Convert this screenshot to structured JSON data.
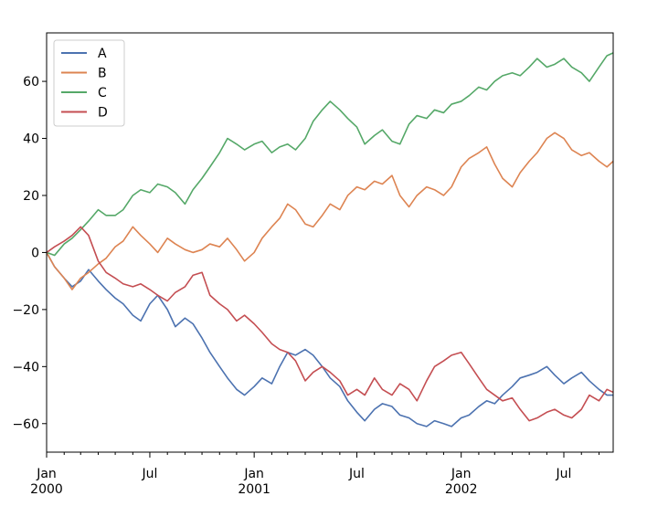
{
  "chart_data": {
    "type": "line",
    "title": "",
    "xlabel": "",
    "ylabel": "",
    "x_range": [
      "2000-01-01",
      "2002-09-26"
    ],
    "ylim": [
      -70,
      77
    ],
    "grid": false,
    "legend_position": "top-left",
    "y_ticks": [
      -60,
      -40,
      -20,
      0,
      20,
      40,
      60
    ],
    "x_major_ticks": [
      {
        "date": "2000-01-01",
        "label": [
          "Jan",
          "2000"
        ]
      },
      {
        "date": "2000-07-01",
        "label": [
          "Jul"
        ]
      },
      {
        "date": "2001-01-01",
        "label": [
          "Jan",
          "2001"
        ]
      },
      {
        "date": "2001-07-01",
        "label": [
          "Jul"
        ]
      },
      {
        "date": "2002-01-01",
        "label": [
          "Jan",
          "2002"
        ]
      },
      {
        "date": "2002-07-01",
        "label": [
          "Jul"
        ]
      }
    ],
    "series": [
      {
        "name": "A",
        "color": "#4c72b0",
        "points": [
          [
            "2000-01-01",
            0
          ],
          [
            "2000-01-15",
            -5
          ],
          [
            "2000-02-01",
            -9
          ],
          [
            "2000-02-15",
            -12
          ],
          [
            "2000-03-01",
            -10
          ],
          [
            "2000-03-15",
            -6
          ],
          [
            "2000-04-01",
            -10
          ],
          [
            "2000-04-15",
            -13
          ],
          [
            "2000-05-01",
            -16
          ],
          [
            "2000-05-15",
            -18
          ],
          [
            "2000-06-01",
            -22
          ],
          [
            "2000-06-15",
            -24
          ],
          [
            "2000-07-01",
            -18
          ],
          [
            "2000-07-15",
            -15
          ],
          [
            "2000-08-01",
            -20
          ],
          [
            "2000-08-15",
            -26
          ],
          [
            "2000-09-01",
            -23
          ],
          [
            "2000-09-15",
            -25
          ],
          [
            "2000-10-01",
            -30
          ],
          [
            "2000-10-15",
            -35
          ],
          [
            "2000-11-01",
            -40
          ],
          [
            "2000-11-15",
            -44
          ],
          [
            "2000-12-01",
            -48
          ],
          [
            "2000-12-15",
            -50
          ],
          [
            "2001-01-01",
            -47
          ],
          [
            "2001-01-15",
            -44
          ],
          [
            "2001-02-01",
            -46
          ],
          [
            "2001-02-15",
            -40
          ],
          [
            "2001-03-01",
            -35
          ],
          [
            "2001-03-15",
            -36
          ],
          [
            "2001-04-01",
            -34
          ],
          [
            "2001-04-15",
            -36
          ],
          [
            "2001-05-01",
            -40
          ],
          [
            "2001-05-15",
            -44
          ],
          [
            "2001-06-01",
            -47
          ],
          [
            "2001-06-15",
            -52
          ],
          [
            "2001-07-01",
            -56
          ],
          [
            "2001-07-15",
            -59
          ],
          [
            "2001-08-01",
            -55
          ],
          [
            "2001-08-15",
            -53
          ],
          [
            "2001-09-01",
            -54
          ],
          [
            "2001-09-15",
            -57
          ],
          [
            "2001-10-01",
            -58
          ],
          [
            "2001-10-15",
            -60
          ],
          [
            "2001-11-01",
            -61
          ],
          [
            "2001-11-15",
            -59
          ],
          [
            "2001-12-01",
            -60
          ],
          [
            "2001-12-15",
            -61
          ],
          [
            "2002-01-01",
            -58
          ],
          [
            "2002-01-15",
            -57
          ],
          [
            "2002-02-01",
            -54
          ],
          [
            "2002-02-15",
            -52
          ],
          [
            "2002-03-01",
            -53
          ],
          [
            "2002-03-15",
            -50
          ],
          [
            "2002-04-01",
            -47
          ],
          [
            "2002-04-15",
            -44
          ],
          [
            "2002-05-01",
            -43
          ],
          [
            "2002-05-15",
            -42
          ],
          [
            "2002-06-01",
            -40
          ],
          [
            "2002-06-15",
            -43
          ],
          [
            "2002-07-01",
            -46
          ],
          [
            "2002-07-15",
            -44
          ],
          [
            "2002-08-01",
            -42
          ],
          [
            "2002-08-15",
            -45
          ],
          [
            "2002-09-01",
            -48
          ],
          [
            "2002-09-15",
            -50
          ],
          [
            "2002-09-26",
            -50
          ]
        ]
      },
      {
        "name": "B",
        "color": "#dd8452",
        "points": [
          [
            "2000-01-01",
            0
          ],
          [
            "2000-01-15",
            -5
          ],
          [
            "2000-02-01",
            -9
          ],
          [
            "2000-02-15",
            -13
          ],
          [
            "2000-03-01",
            -9
          ],
          [
            "2000-03-15",
            -7
          ],
          [
            "2000-04-01",
            -4
          ],
          [
            "2000-04-15",
            -2
          ],
          [
            "2000-05-01",
            2
          ],
          [
            "2000-05-15",
            4
          ],
          [
            "2000-06-01",
            9
          ],
          [
            "2000-06-15",
            6
          ],
          [
            "2000-07-01",
            3
          ],
          [
            "2000-07-15",
            0
          ],
          [
            "2000-08-01",
            5
          ],
          [
            "2000-08-15",
            3
          ],
          [
            "2000-09-01",
            1
          ],
          [
            "2000-09-15",
            0
          ],
          [
            "2000-10-01",
            1
          ],
          [
            "2000-10-15",
            3
          ],
          [
            "2000-11-01",
            2
          ],
          [
            "2000-11-15",
            5
          ],
          [
            "2000-12-01",
            1
          ],
          [
            "2000-12-15",
            -3
          ],
          [
            "2001-01-01",
            0
          ],
          [
            "2001-01-15",
            5
          ],
          [
            "2001-02-01",
            9
          ],
          [
            "2001-02-15",
            12
          ],
          [
            "2001-03-01",
            17
          ],
          [
            "2001-03-15",
            15
          ],
          [
            "2001-04-01",
            10
          ],
          [
            "2001-04-15",
            9
          ],
          [
            "2001-05-01",
            13
          ],
          [
            "2001-05-15",
            17
          ],
          [
            "2001-06-01",
            15
          ],
          [
            "2001-06-15",
            20
          ],
          [
            "2001-07-01",
            23
          ],
          [
            "2001-07-15",
            22
          ],
          [
            "2001-08-01",
            25
          ],
          [
            "2001-08-15",
            24
          ],
          [
            "2001-09-01",
            27
          ],
          [
            "2001-09-15",
            20
          ],
          [
            "2001-10-01",
            16
          ],
          [
            "2001-10-15",
            20
          ],
          [
            "2001-11-01",
            23
          ],
          [
            "2001-11-15",
            22
          ],
          [
            "2001-12-01",
            20
          ],
          [
            "2001-12-15",
            23
          ],
          [
            "2002-01-01",
            30
          ],
          [
            "2002-01-15",
            33
          ],
          [
            "2002-02-01",
            35
          ],
          [
            "2002-02-15",
            37
          ],
          [
            "2002-03-01",
            31
          ],
          [
            "2002-03-15",
            26
          ],
          [
            "2002-04-01",
            23
          ],
          [
            "2002-04-15",
            28
          ],
          [
            "2002-05-01",
            32
          ],
          [
            "2002-05-15",
            35
          ],
          [
            "2002-06-01",
            40
          ],
          [
            "2002-06-15",
            42
          ],
          [
            "2002-07-01",
            40
          ],
          [
            "2002-07-15",
            36
          ],
          [
            "2002-08-01",
            34
          ],
          [
            "2002-08-15",
            35
          ],
          [
            "2002-09-01",
            32
          ],
          [
            "2002-09-15",
            30
          ],
          [
            "2002-09-26",
            32
          ]
        ]
      },
      {
        "name": "C",
        "color": "#55a868",
        "points": [
          [
            "2000-01-01",
            0
          ],
          [
            "2000-01-15",
            -1
          ],
          [
            "2000-02-01",
            3
          ],
          [
            "2000-02-15",
            5
          ],
          [
            "2000-03-01",
            8
          ],
          [
            "2000-03-15",
            11
          ],
          [
            "2000-04-01",
            15
          ],
          [
            "2000-04-15",
            13
          ],
          [
            "2000-05-01",
            13
          ],
          [
            "2000-05-15",
            15
          ],
          [
            "2000-06-01",
            20
          ],
          [
            "2000-06-15",
            22
          ],
          [
            "2000-07-01",
            21
          ],
          [
            "2000-07-15",
            24
          ],
          [
            "2000-08-01",
            23
          ],
          [
            "2000-08-15",
            21
          ],
          [
            "2000-09-01",
            17
          ],
          [
            "2000-09-15",
            22
          ],
          [
            "2000-10-01",
            26
          ],
          [
            "2000-10-15",
            30
          ],
          [
            "2000-11-01",
            35
          ],
          [
            "2000-11-15",
            40
          ],
          [
            "2000-12-01",
            38
          ],
          [
            "2000-12-15",
            36
          ],
          [
            "2001-01-01",
            38
          ],
          [
            "2001-01-15",
            39
          ],
          [
            "2001-02-01",
            35
          ],
          [
            "2001-02-15",
            37
          ],
          [
            "2001-03-01",
            38
          ],
          [
            "2001-03-15",
            36
          ],
          [
            "2001-04-01",
            40
          ],
          [
            "2001-04-15",
            46
          ],
          [
            "2001-05-01",
            50
          ],
          [
            "2001-05-15",
            53
          ],
          [
            "2001-06-01",
            50
          ],
          [
            "2001-06-15",
            47
          ],
          [
            "2001-07-01",
            44
          ],
          [
            "2001-07-15",
            38
          ],
          [
            "2001-08-01",
            41
          ],
          [
            "2001-08-15",
            43
          ],
          [
            "2001-09-01",
            39
          ],
          [
            "2001-09-15",
            38
          ],
          [
            "2001-10-01",
            45
          ],
          [
            "2001-10-15",
            48
          ],
          [
            "2001-11-01",
            47
          ],
          [
            "2001-11-15",
            50
          ],
          [
            "2001-12-01",
            49
          ],
          [
            "2001-12-15",
            52
          ],
          [
            "2002-01-01",
            53
          ],
          [
            "2002-01-15",
            55
          ],
          [
            "2002-02-01",
            58
          ],
          [
            "2002-02-15",
            57
          ],
          [
            "2002-03-01",
            60
          ],
          [
            "2002-03-15",
            62
          ],
          [
            "2002-04-01",
            63
          ],
          [
            "2002-04-15",
            62
          ],
          [
            "2002-05-01",
            65
          ],
          [
            "2002-05-15",
            68
          ],
          [
            "2002-06-01",
            65
          ],
          [
            "2002-06-15",
            66
          ],
          [
            "2002-07-01",
            68
          ],
          [
            "2002-07-15",
            65
          ],
          [
            "2002-08-01",
            63
          ],
          [
            "2002-08-15",
            60
          ],
          [
            "2002-09-01",
            65
          ],
          [
            "2002-09-15",
            69
          ],
          [
            "2002-09-26",
            70
          ]
        ]
      },
      {
        "name": "D",
        "color": "#c44e52",
        "points": [
          [
            "2000-01-01",
            0
          ],
          [
            "2000-01-15",
            2
          ],
          [
            "2000-02-01",
            4
          ],
          [
            "2000-02-15",
            6
          ],
          [
            "2000-03-01",
            9
          ],
          [
            "2000-03-15",
            6
          ],
          [
            "2000-04-01",
            -3
          ],
          [
            "2000-04-15",
            -7
          ],
          [
            "2000-05-01",
            -9
          ],
          [
            "2000-05-15",
            -11
          ],
          [
            "2000-06-01",
            -12
          ],
          [
            "2000-06-15",
            -11
          ],
          [
            "2000-07-01",
            -13
          ],
          [
            "2000-07-15",
            -15
          ],
          [
            "2000-08-01",
            -17
          ],
          [
            "2000-08-15",
            -14
          ],
          [
            "2000-09-01",
            -12
          ],
          [
            "2000-09-15",
            -8
          ],
          [
            "2000-10-01",
            -7
          ],
          [
            "2000-10-15",
            -15
          ],
          [
            "2000-11-01",
            -18
          ],
          [
            "2000-11-15",
            -20
          ],
          [
            "2000-12-01",
            -24
          ],
          [
            "2000-12-15",
            -22
          ],
          [
            "2001-01-01",
            -25
          ],
          [
            "2001-01-15",
            -28
          ],
          [
            "2001-02-01",
            -32
          ],
          [
            "2001-02-15",
            -34
          ],
          [
            "2001-03-01",
            -35
          ],
          [
            "2001-03-15",
            -38
          ],
          [
            "2001-04-01",
            -45
          ],
          [
            "2001-04-15",
            -42
          ],
          [
            "2001-05-01",
            -40
          ],
          [
            "2001-05-15",
            -42
          ],
          [
            "2001-06-01",
            -45
          ],
          [
            "2001-06-15",
            -50
          ],
          [
            "2001-07-01",
            -48
          ],
          [
            "2001-07-15",
            -50
          ],
          [
            "2001-08-01",
            -44
          ],
          [
            "2001-08-15",
            -48
          ],
          [
            "2001-09-01",
            -50
          ],
          [
            "2001-09-15",
            -46
          ],
          [
            "2001-10-01",
            -48
          ],
          [
            "2001-10-15",
            -52
          ],
          [
            "2001-11-01",
            -45
          ],
          [
            "2001-11-15",
            -40
          ],
          [
            "2001-12-01",
            -38
          ],
          [
            "2001-12-15",
            -36
          ],
          [
            "2002-01-01",
            -35
          ],
          [
            "2002-01-15",
            -39
          ],
          [
            "2002-02-01",
            -44
          ],
          [
            "2002-02-15",
            -48
          ],
          [
            "2002-03-01",
            -50
          ],
          [
            "2002-03-15",
            -52
          ],
          [
            "2002-04-01",
            -51
          ],
          [
            "2002-04-15",
            -55
          ],
          [
            "2002-05-01",
            -59
          ],
          [
            "2002-05-15",
            -58
          ],
          [
            "2002-06-01",
            -56
          ],
          [
            "2002-06-15",
            -55
          ],
          [
            "2002-07-01",
            -57
          ],
          [
            "2002-07-15",
            -58
          ],
          [
            "2002-08-01",
            -55
          ],
          [
            "2002-08-15",
            -50
          ],
          [
            "2002-09-01",
            -52
          ],
          [
            "2002-09-15",
            -48
          ],
          [
            "2002-09-26",
            -49
          ]
        ]
      }
    ]
  }
}
